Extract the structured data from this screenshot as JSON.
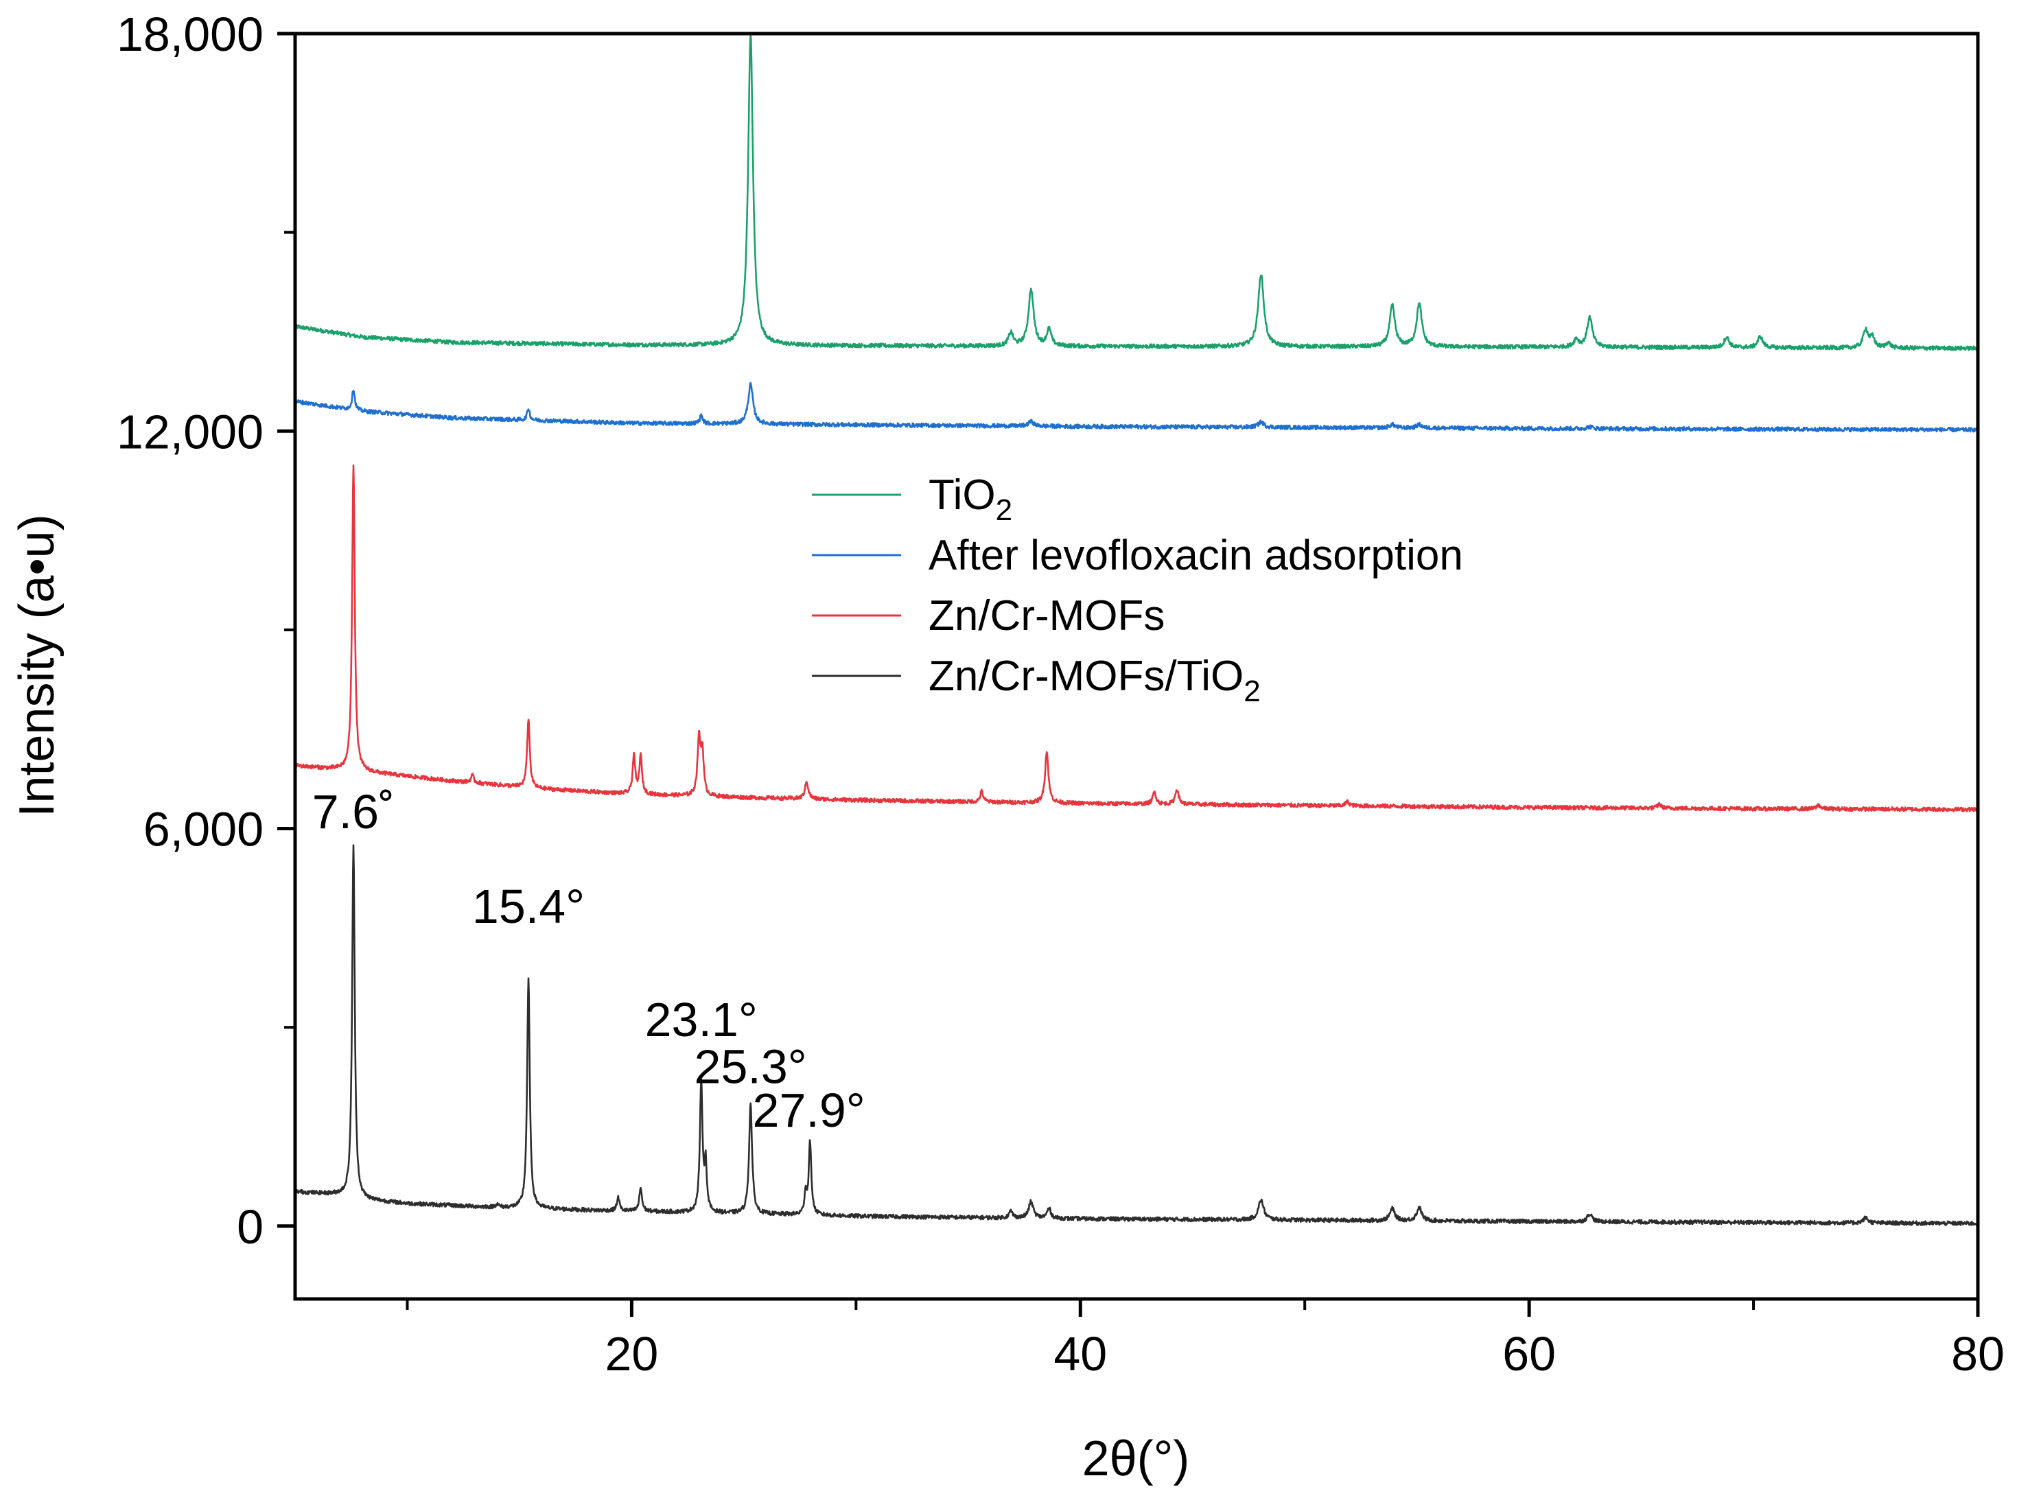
{
  "chart_data": {
    "type": "line",
    "title": "",
    "xlabel": "2θ(°)",
    "ylabel": "Intensity (a•u)",
    "xlim": [
      5,
      80
    ],
    "ylim": [
      -1100,
      18000
    ],
    "x_ticks": [
      {
        "value": 20,
        "label": "20"
      },
      {
        "value": 40,
        "label": "40"
      },
      {
        "value": 60,
        "label": "60"
      },
      {
        "value": 80,
        "label": "80"
      }
    ],
    "x_minor_ticks": [
      10,
      30,
      50,
      70
    ],
    "y_ticks": [
      {
        "value": 0,
        "label": "0"
      },
      {
        "value": 6000,
        "label": "6,000"
      },
      {
        "value": 12000,
        "label": "12,000"
      },
      {
        "value": 18000,
        "label": "18,000"
      }
    ],
    "y_minor_ticks": [
      3000,
      9000,
      15000
    ],
    "legend": {
      "position": "center",
      "entries": [
        {
          "series": "tio2",
          "label": "TiO",
          "subscript": "2"
        },
        {
          "series": "after",
          "label": "After levofloxacin adsorption",
          "subscript": ""
        },
        {
          "series": "znmof",
          "label": "Zn/Cr-MOFs",
          "subscript": ""
        },
        {
          "series": "composite",
          "label": "Zn/Cr-MOFs/TiO",
          "subscript": "2"
        }
      ]
    },
    "annotations": [
      {
        "text": "7.6˚",
        "x": 7.6,
        "y": 5780
      },
      {
        "text": "15.4°",
        "x": 15.4,
        "y": 4350
      },
      {
        "text": "23.1°",
        "x": 23.1,
        "y": 2640
      },
      {
        "text": "25.3°",
        "x": 25.3,
        "y": 1930
      },
      {
        "text": "27.9°",
        "x": 27.9,
        "y": 1270
      }
    ],
    "series": [
      {
        "id": "tio2",
        "name": "TiO2",
        "color": "#1aa06b",
        "baseline": [
          [
            5,
            13580
          ],
          [
            8,
            13420
          ],
          [
            12,
            13340
          ],
          [
            20,
            13300
          ],
          [
            40,
            13280
          ],
          [
            60,
            13270
          ],
          [
            80,
            13250
          ]
        ],
        "peaks": [
          [
            25.3,
            4700,
            0.13
          ],
          [
            36.9,
            200,
            0.12
          ],
          [
            37.8,
            850,
            0.14
          ],
          [
            38.6,
            250,
            0.12
          ],
          [
            48.05,
            1100,
            0.15
          ],
          [
            53.9,
            620,
            0.14
          ],
          [
            55.1,
            650,
            0.14
          ],
          [
            62.1,
            120,
            0.12
          ],
          [
            62.7,
            450,
            0.14
          ],
          [
            68.8,
            160,
            0.13
          ],
          [
            70.3,
            170,
            0.13
          ],
          [
            75.0,
            280,
            0.13
          ],
          [
            75.3,
            150,
            0.12
          ],
          [
            76.0,
            80,
            0.12
          ]
        ]
      },
      {
        "id": "after",
        "name": "After levofloxacin adsorption",
        "color": "#1f6fd1",
        "baseline": [
          [
            5,
            12450
          ],
          [
            8,
            12300
          ],
          [
            12,
            12200
          ],
          [
            20,
            12120
          ],
          [
            40,
            12070
          ],
          [
            60,
            12040
          ],
          [
            80,
            12020
          ]
        ],
        "peaks": [
          [
            7.6,
            320,
            0.07
          ],
          [
            15.4,
            180,
            0.07
          ],
          [
            23.1,
            120,
            0.08
          ],
          [
            25.3,
            600,
            0.13
          ],
          [
            37.8,
            70,
            0.14
          ],
          [
            48.05,
            80,
            0.15
          ],
          [
            53.9,
            50,
            0.14
          ],
          [
            55.1,
            50,
            0.14
          ],
          [
            62.7,
            30,
            0.14
          ]
        ]
      },
      {
        "id": "znmof",
        "name": "Zn/Cr-MOFs",
        "color": "#e8343c",
        "baseline": [
          [
            5,
            6950
          ],
          [
            8,
            6860
          ],
          [
            12,
            6720
          ],
          [
            16,
            6600
          ],
          [
            20,
            6520
          ],
          [
            25,
            6470
          ],
          [
            30,
            6430
          ],
          [
            40,
            6380
          ],
          [
            50,
            6350
          ],
          [
            60,
            6320
          ],
          [
            70,
            6300
          ],
          [
            80,
            6290
          ]
        ],
        "peaks": [
          [
            7.6,
            4620,
            0.07
          ],
          [
            12.9,
            110,
            0.08
          ],
          [
            15.4,
            1050,
            0.07
          ],
          [
            20.1,
            580,
            0.07
          ],
          [
            20.4,
            580,
            0.07
          ],
          [
            23.0,
            850,
            0.08
          ],
          [
            23.15,
            650,
            0.07
          ],
          [
            27.8,
            260,
            0.09
          ],
          [
            35.6,
            160,
            0.08
          ],
          [
            38.5,
            780,
            0.09
          ],
          [
            43.3,
            180,
            0.09
          ],
          [
            44.3,
            230,
            0.09
          ],
          [
            51.9,
            60,
            0.1
          ],
          [
            65.8,
            60,
            0.1
          ],
          [
            72.9,
            60,
            0.1
          ]
        ]
      },
      {
        "id": "composite",
        "name": "Zn/Cr-MOFs/TiO2",
        "color": "#2d2d2d",
        "baseline": [
          [
            5,
            520
          ],
          [
            7,
            470
          ],
          [
            8,
            400
          ],
          [
            10,
            340
          ],
          [
            14,
            280
          ],
          [
            18,
            240
          ],
          [
            22,
            210
          ],
          [
            26,
            180
          ],
          [
            30,
            150
          ],
          [
            40,
            110
          ],
          [
            50,
            90
          ],
          [
            60,
            70
          ],
          [
            70,
            55
          ],
          [
            80,
            40
          ]
        ],
        "peaks": [
          [
            7.6,
            5300,
            0.07
          ],
          [
            14.0,
            50,
            0.08
          ],
          [
            15.4,
            3470,
            0.07
          ],
          [
            19.4,
            200,
            0.07
          ],
          [
            20.4,
            360,
            0.07
          ],
          [
            23.1,
            1950,
            0.07
          ],
          [
            23.3,
            700,
            0.06
          ],
          [
            25.3,
            1670,
            0.08
          ],
          [
            27.75,
            320,
            0.06
          ],
          [
            27.95,
            1100,
            0.07
          ],
          [
            36.9,
            100,
            0.1
          ],
          [
            37.8,
            250,
            0.12
          ],
          [
            38.6,
            150,
            0.1
          ],
          [
            48.05,
            300,
            0.14
          ],
          [
            53.9,
            180,
            0.13
          ],
          [
            55.1,
            200,
            0.13
          ],
          [
            62.7,
            120,
            0.13
          ],
          [
            75.0,
            80,
            0.12
          ]
        ]
      }
    ]
  }
}
